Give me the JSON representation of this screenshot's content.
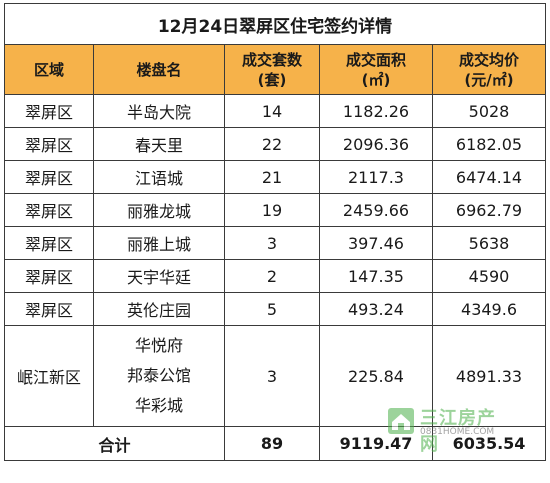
{
  "title": "12月24日翠屏区住宅签约详情",
  "headers": {
    "region": "区域",
    "project": "楼盘名",
    "units_l1": "成交套数",
    "units_l2": "(套)",
    "area_l1": "成交面积",
    "area_l2": "(㎡)",
    "price_l1": "成交均价",
    "price_l2": "(元/㎡)"
  },
  "rows": [
    {
      "region": "翠屏区",
      "project": "半岛大院",
      "units": "14",
      "area": "1182.26",
      "price": "5028"
    },
    {
      "region": "翠屏区",
      "project": "春天里",
      "units": "22",
      "area": "2096.36",
      "price": "6182.05"
    },
    {
      "region": "翠屏区",
      "project": "江语城",
      "units": "21",
      "area": "2117.3",
      "price": "6474.14"
    },
    {
      "region": "翠屏区",
      "project": "丽雅龙城",
      "units": "19",
      "area": "2459.66",
      "price": "6962.79"
    },
    {
      "region": "翠屏区",
      "project": "丽雅上城",
      "units": "3",
      "area": "397.46",
      "price": "5638"
    },
    {
      "region": "翠屏区",
      "project": "天宇华廷",
      "units": "2",
      "area": "147.35",
      "price": "4590"
    },
    {
      "region": "翠屏区",
      "project": "英伦庄园",
      "units": "5",
      "area": "493.24",
      "price": "4349.6"
    }
  ],
  "minjiang": {
    "region": "岷江新区",
    "projects": [
      "华悦府",
      "邦泰公馆",
      "华彩城"
    ],
    "units": "3",
    "area": "225.84",
    "price": "4891.33"
  },
  "total": {
    "label": "合计",
    "units": "89",
    "area": "9119.47",
    "price": "6035.54"
  },
  "watermark": {
    "name": "三江房产网",
    "site": "0831HOME.COM",
    "color": "#4db04a"
  },
  "colors": {
    "header_bg": "#f6b24a",
    "border": "#3a3a3a"
  }
}
